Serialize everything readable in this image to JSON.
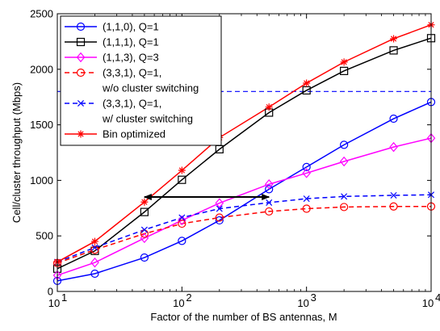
{
  "chart_data": {
    "type": "line",
    "title": "",
    "xlabel": "Factor of the number of BS antennas, M",
    "ylabel": "Cell/cluster throughput (Mbps)",
    "x_scale": "log",
    "xlim": [
      10,
      10000
    ],
    "ylim": [
      0,
      2500
    ],
    "x_tick_labels": [
      {
        "base": "10",
        "exp": "1"
      },
      {
        "base": "10",
        "exp": "2"
      },
      {
        "base": "10",
        "exp": "3"
      },
      {
        "base": "10",
        "exp": "4"
      }
    ],
    "y_ticks": [
      "0",
      "500",
      "1000",
      "1500",
      "2000",
      "2500"
    ],
    "grid": false,
    "legend_position": "top-left",
    "x": [
      10,
      20,
      50,
      100,
      200,
      500,
      1000,
      2000,
      5000,
      10000
    ],
    "series": [
      {
        "name": "(1,1,0), Q=1",
        "color": "#0000ff",
        "dash": "solid",
        "marker": "circle",
        "values": [
          95,
          160,
          305,
          455,
          640,
          920,
          1120,
          1320,
          1555,
          1705
        ]
      },
      {
        "name": "(1,1,1), Q=1",
        "color": "#000000",
        "dash": "solid",
        "marker": "square",
        "values": [
          205,
          365,
          715,
          1005,
          1280,
          1610,
          1810,
          1985,
          2170,
          2280
        ]
      },
      {
        "name": "(1,1,3), Q=3",
        "color": "#ff00ff",
        "dash": "solid",
        "marker": "diamond",
        "values": [
          145,
          260,
          480,
          640,
          795,
          965,
          1065,
          1170,
          1300,
          1380
        ]
      },
      {
        "name": "(3,3,1), Q=1,",
        "name_line2": "w/o cluster switching",
        "color": "#ff0000",
        "dash": "dashed",
        "marker": "circle",
        "values": [
          255,
          375,
          520,
          610,
          665,
          720,
          745,
          760,
          765,
          765
        ]
      },
      {
        "name": "(3,3,1), Q=1,",
        "name_line2": "w/ cluster switching",
        "color": "#0000ff",
        "dash": "dashed",
        "marker": "x",
        "values": [
          265,
          395,
          555,
          665,
          745,
          800,
          835,
          855,
          865,
          870
        ]
      },
      {
        "name": "Bin optimized",
        "color": "#ff0000",
        "dash": "solid",
        "marker": "star",
        "values": [
          265,
          450,
          805,
          1090,
          1385,
          1660,
          1875,
          2065,
          2275,
          2400
        ]
      }
    ],
    "reference_line": {
      "y": 1800,
      "color": "#0000ff",
      "dash": "dashed"
    },
    "annotation_arrow": {
      "x_start": 50,
      "x_end": 500,
      "y": 850,
      "color": "#000000"
    }
  }
}
